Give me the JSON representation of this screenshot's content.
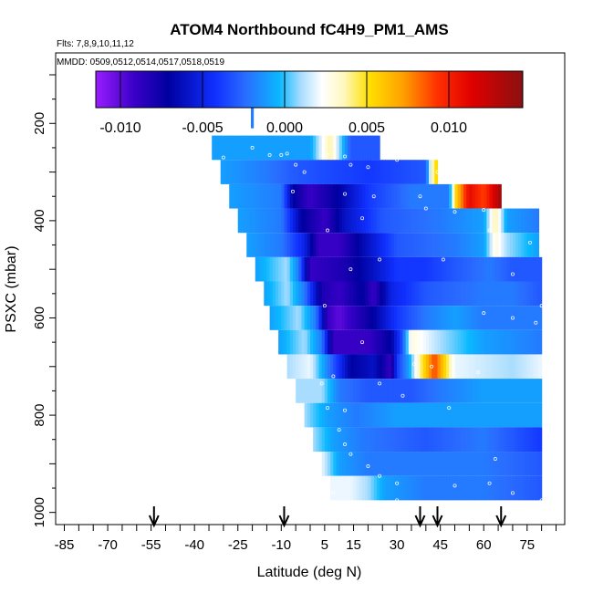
{
  "chart_data": {
    "type": "heatmap",
    "title": "ATOM4 Northbound fC4H9_PM1_AMS",
    "subtitle_flights": "Flts: 7,8,9,10,11,12",
    "subtitle_dates": "MMDD: 0509,0512,0514,0517,0518,0519",
    "xlabel": "Latitude (deg N)",
    "ylabel": "PSXC (mbar)",
    "xlim": [
      -88,
      88
    ],
    "ylim": [
      1025,
      55
    ],
    "x_ticks": [
      -85,
      -70,
      -55,
      -40,
      -25,
      -10,
      5,
      15,
      30,
      45,
      60,
      75
    ],
    "x_tick_labels": [
      "-85",
      "-70",
      "-55",
      "-40",
      "-25",
      "-10",
      "5",
      "15",
      "30",
      "45",
      "60",
      "75"
    ],
    "y_ticks": [
      200,
      400,
      600,
      800,
      1000
    ],
    "y_tick_labels": [
      "200",
      "400",
      "600",
      "800",
      "1000"
    ],
    "colorbar": {
      "min": -0.0115,
      "max": 0.0145,
      "ticks": [
        -0.01,
        -0.005,
        0.0,
        0.005,
        0.01
      ],
      "tick_labels": [
        "-0.010",
        "-0.005",
        "0.000",
        "0.005",
        "0.010"
      ]
    },
    "arrows_latitude": [
      -54,
      -9,
      38,
      44,
      66
    ],
    "layers": [
      {
        "p": 250,
        "lat_start": -34,
        "lat_end": 24,
        "stops": [
          [
            -34,
            -0.001
          ],
          [
            0,
            -0.001
          ],
          [
            4,
            0.002
          ],
          [
            7,
            0.004
          ],
          [
            10,
            0.001
          ],
          [
            14,
            -0.003
          ],
          [
            24,
            -0.003
          ]
        ]
      },
      {
        "p": 300,
        "lat_start": -31,
        "lat_end": 44,
        "stops": [
          [
            -31,
            -0.001
          ],
          [
            -15,
            -0.002
          ],
          [
            -5,
            -0.003
          ],
          [
            20,
            -0.004
          ],
          [
            40,
            -0.003
          ],
          [
            42,
            0.003
          ],
          [
            44,
            0.006
          ]
        ]
      },
      {
        "p": 350,
        "lat_start": -28,
        "lat_end": 66,
        "stops": [
          [
            -28,
            -0.001
          ],
          [
            -10,
            -0.002
          ],
          [
            -6,
            -0.007
          ],
          [
            0,
            -0.009
          ],
          [
            10,
            -0.007
          ],
          [
            20,
            -0.004
          ],
          [
            35,
            -0.002
          ],
          [
            48,
            -0.002
          ],
          [
            50,
            0.005
          ],
          [
            55,
            0.011
          ],
          [
            60,
            0.009
          ],
          [
            64,
            0.012
          ],
          [
            66,
            0.014
          ]
        ]
      },
      {
        "p": 400,
        "lat_start": -25,
        "lat_end": 79,
        "stops": [
          [
            -25,
            -0.001
          ],
          [
            -10,
            -0.002
          ],
          [
            -3,
            -0.007
          ],
          [
            5,
            -0.009
          ],
          [
            12,
            -0.006
          ],
          [
            25,
            -0.003
          ],
          [
            45,
            -0.002
          ],
          [
            60,
            -0.001
          ],
          [
            64,
            0.004
          ],
          [
            68,
            -0.001
          ],
          [
            79,
            -0.002
          ]
        ]
      },
      {
        "p": 450,
        "lat_start": -22,
        "lat_end": 79,
        "stops": [
          [
            -22,
            -0.001
          ],
          [
            -10,
            -0.002
          ],
          [
            -2,
            -0.005
          ],
          [
            3,
            -0.009
          ],
          [
            10,
            -0.009
          ],
          [
            20,
            -0.006
          ],
          [
            30,
            -0.003
          ],
          [
            50,
            -0.002
          ],
          [
            60,
            -0.001
          ],
          [
            64,
            0.003
          ],
          [
            68,
            0.001
          ],
          [
            79,
            -0.001
          ]
        ]
      },
      {
        "p": 500,
        "lat_start": -19,
        "lat_end": 80,
        "stops": [
          [
            -19,
            -0.001
          ],
          [
            -8,
            0.001
          ],
          [
            -4,
            -0.002
          ],
          [
            0,
            -0.009
          ],
          [
            12,
            -0.008
          ],
          [
            22,
            -0.006
          ],
          [
            30,
            -0.004
          ],
          [
            40,
            -0.004
          ],
          [
            50,
            -0.003
          ],
          [
            62,
            -0.002
          ],
          [
            70,
            -0.003
          ],
          [
            80,
            -0.003
          ]
        ]
      },
      {
        "p": 550,
        "lat_start": -16,
        "lat_end": 80,
        "stops": [
          [
            -16,
            -0.001
          ],
          [
            -8,
            0.001
          ],
          [
            -2,
            -0.002
          ],
          [
            4,
            -0.008
          ],
          [
            10,
            -0.009
          ],
          [
            18,
            -0.007
          ],
          [
            22,
            -0.009
          ],
          [
            28,
            -0.005
          ],
          [
            40,
            -0.003
          ],
          [
            60,
            -0.002
          ],
          [
            70,
            -0.002
          ],
          [
            80,
            -0.003
          ]
        ]
      },
      {
        "p": 600,
        "lat_start": -14,
        "lat_end": 80,
        "stops": [
          [
            -14,
            -0.001
          ],
          [
            -4,
            0.001
          ],
          [
            2,
            -0.002
          ],
          [
            6,
            -0.009
          ],
          [
            10,
            -0.01
          ],
          [
            22,
            -0.007
          ],
          [
            30,
            -0.004
          ],
          [
            40,
            -0.002
          ],
          [
            50,
            -0.001
          ],
          [
            60,
            -0.002
          ],
          [
            80,
            -0.002
          ]
        ]
      },
      {
        "p": 650,
        "lat_start": -11,
        "lat_end": 80,
        "stops": [
          [
            -11,
            -0.001
          ],
          [
            -2,
            0.001
          ],
          [
            4,
            -0.002
          ],
          [
            8,
            -0.009
          ],
          [
            20,
            -0.009
          ],
          [
            28,
            -0.007
          ],
          [
            32,
            -0.003
          ],
          [
            35,
            0.003
          ],
          [
            40,
            0.002
          ],
          [
            45,
            0.001
          ],
          [
            60,
            -0.001
          ],
          [
            80,
            -0.002
          ]
        ]
      },
      {
        "p": 700,
        "lat_start": -8,
        "lat_end": 80,
        "stops": [
          [
            -8,
            0.001
          ],
          [
            0,
            0.002
          ],
          [
            8,
            -0.003
          ],
          [
            14,
            -0.007
          ],
          [
            22,
            -0.006
          ],
          [
            28,
            -0.009
          ],
          [
            30,
            -0.004
          ],
          [
            34,
            -0.001
          ],
          [
            38,
            0.004
          ],
          [
            43,
            0.009
          ],
          [
            46,
            0.006
          ],
          [
            50,
            0.002
          ],
          [
            70,
            0.001
          ],
          [
            80,
            0.002
          ]
        ]
      },
      {
        "p": 750,
        "lat_start": -5,
        "lat_end": 80,
        "stops": [
          [
            -5,
            0.001
          ],
          [
            4,
            0.001
          ],
          [
            10,
            -0.002
          ],
          [
            20,
            -0.003
          ],
          [
            35,
            -0.003
          ],
          [
            45,
            -0.002
          ],
          [
            60,
            -0.001
          ],
          [
            80,
            -0.001
          ]
        ]
      },
      {
        "p": 800,
        "lat_start": -2,
        "lat_end": 80,
        "stops": [
          [
            -2,
            0.001
          ],
          [
            6,
            -0.001
          ],
          [
            16,
            -0.002
          ],
          [
            30,
            -0.001
          ],
          [
            50,
            -0.001
          ],
          [
            70,
            -0.001
          ],
          [
            80,
            -0.001
          ]
        ]
      },
      {
        "p": 850,
        "lat_start": 1,
        "lat_end": 80,
        "stops": [
          [
            1,
            0.001
          ],
          [
            8,
            -0.001
          ],
          [
            18,
            -0.002
          ],
          [
            40,
            -0.003
          ],
          [
            60,
            -0.002
          ],
          [
            70,
            -0.003
          ],
          [
            80,
            -0.004
          ]
        ]
      },
      {
        "p": 900,
        "lat_start": 4,
        "lat_end": 80,
        "stops": [
          [
            4,
            0.002
          ],
          [
            10,
            -0.001
          ],
          [
            20,
            -0.002
          ],
          [
            40,
            -0.002
          ],
          [
            60,
            -0.002
          ],
          [
            80,
            -0.003
          ]
        ]
      },
      {
        "p": 950,
        "lat_start": 7,
        "lat_end": 80,
        "stops": [
          [
            7,
            0.002
          ],
          [
            14,
            0.002
          ],
          [
            20,
            0.001
          ],
          [
            26,
            -0.001
          ],
          [
            40,
            -0.002
          ],
          [
            60,
            -0.002
          ],
          [
            80,
            -0.003
          ]
        ]
      }
    ],
    "extra_cells": [
      {
        "lat": -20,
        "p_top": 165,
        "p_bottom": 210,
        "value": -0.002
      }
    ],
    "sample_points": [
      [
        -30,
        270
      ],
      [
        -20,
        250
      ],
      [
        -14,
        265
      ],
      [
        -10,
        265
      ],
      [
        -8,
        262
      ],
      [
        -5,
        285
      ],
      [
        -2,
        300
      ],
      [
        6,
        265
      ],
      [
        12,
        268
      ],
      [
        14,
        285
      ],
      [
        20,
        290
      ],
      [
        30,
        275
      ],
      [
        36,
        270
      ],
      [
        44,
        300
      ],
      [
        -6,
        340
      ],
      [
        12,
        345
      ],
      [
        22,
        350
      ],
      [
        38,
        350
      ],
      [
        40,
        375
      ],
      [
        50,
        382
      ],
      [
        60,
        378
      ],
      [
        18,
        395
      ],
      [
        6,
        420
      ],
      [
        62,
        420
      ],
      [
        76,
        445
      ],
      [
        14,
        500
      ],
      [
        24,
        480
      ],
      [
        70,
        510
      ],
      [
        46,
        480
      ],
      [
        60,
        590
      ],
      [
        80,
        575
      ],
      [
        78,
        610
      ],
      [
        70,
        600
      ],
      [
        5,
        575
      ],
      [
        18,
        650
      ],
      [
        36,
        695
      ],
      [
        42,
        700
      ],
      [
        8,
        720
      ],
      [
        58,
        712
      ],
      [
        24,
        735
      ],
      [
        4,
        735
      ],
      [
        32,
        760
      ],
      [
        48,
        785
      ],
      [
        6,
        785
      ],
      [
        12,
        790
      ],
      [
        -2,
        830
      ],
      [
        10,
        830
      ],
      [
        12,
        860
      ],
      [
        64,
        890
      ],
      [
        14,
        880
      ],
      [
        20,
        905
      ],
      [
        24,
        925
      ],
      [
        30,
        940
      ],
      [
        50,
        945
      ],
      [
        62,
        940
      ],
      [
        70,
        960
      ],
      [
        80,
        975
      ],
      [
        30,
        975
      ],
      [
        8,
        960
      ]
    ]
  }
}
